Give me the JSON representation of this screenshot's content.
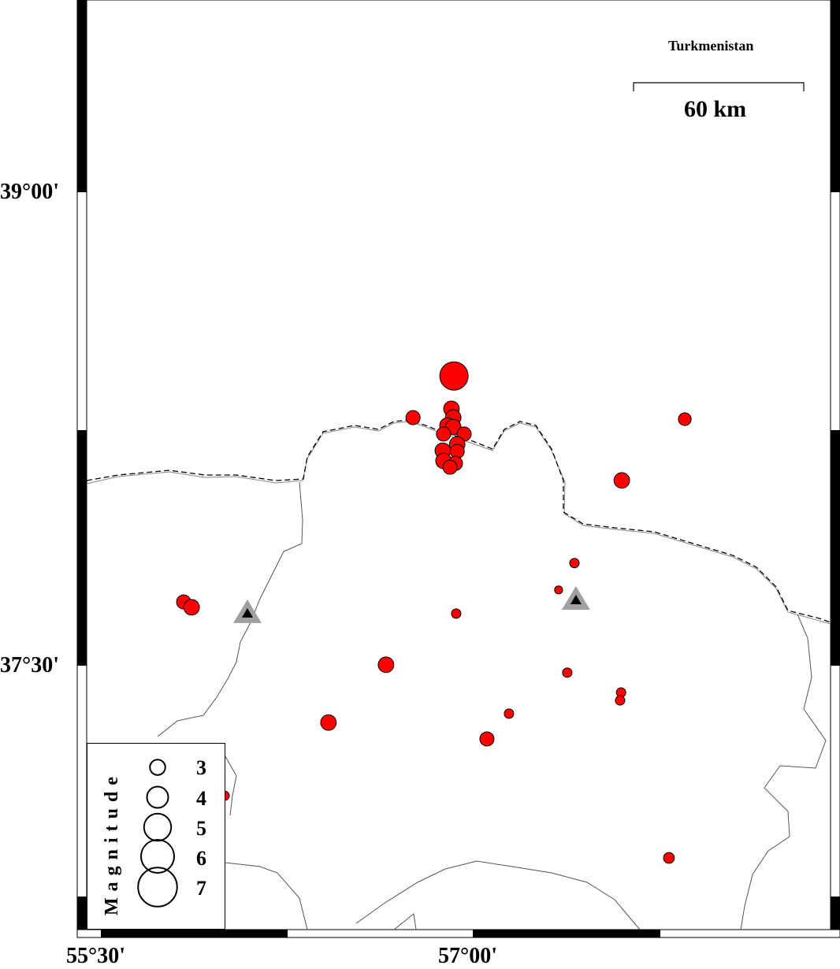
{
  "map": {
    "extent": {
      "lon": [
        55.44,
        58.44
      ],
      "lat": [
        36.66,
        39.61
      ]
    },
    "country_label": "Turkmenistan",
    "scale_bar": {
      "label": "60 km"
    },
    "lat_ticks": [
      {
        "value": 39.0,
        "label": "39°00'"
      },
      {
        "value": 37.5,
        "label": "37°30'"
      }
    ],
    "lon_ticks": [
      {
        "value": 55.5,
        "label": "55°30'"
      },
      {
        "value": 57.0,
        "label": "57°00'"
      }
    ],
    "colors": {
      "event_fill": "#ff0000",
      "event_stroke": "#000000",
      "station_outer": "#a0a0a0",
      "station_inner": "#000000",
      "border": "#000000",
      "province": "#666666"
    },
    "events": [
      {
        "lon": 56.924,
        "lat": 38.418,
        "mag": 7.0
      },
      {
        "lon": 56.914,
        "lat": 38.314,
        "mag": 4.3
      },
      {
        "lon": 56.759,
        "lat": 38.286,
        "mag": 4.0
      },
      {
        "lon": 56.921,
        "lat": 38.286,
        "mag": 4.3
      },
      {
        "lon": 56.898,
        "lat": 38.261,
        "mag": 4.3
      },
      {
        "lon": 56.921,
        "lat": 38.256,
        "mag": 4.3
      },
      {
        "lon": 56.965,
        "lat": 38.234,
        "mag": 4.0
      },
      {
        "lon": 56.882,
        "lat": 38.234,
        "mag": 4.0
      },
      {
        "lon": 56.937,
        "lat": 38.201,
        "mag": 4.3
      },
      {
        "lon": 56.879,
        "lat": 38.181,
        "mag": 4.3
      },
      {
        "lon": 56.937,
        "lat": 38.179,
        "mag": 4.0
      },
      {
        "lon": 56.882,
        "lat": 38.149,
        "mag": 4.3
      },
      {
        "lon": 56.93,
        "lat": 38.141,
        "mag": 4.0
      },
      {
        "lon": 56.908,
        "lat": 38.129,
        "mag": 4.0
      },
      {
        "lon": 57.855,
        "lat": 38.281,
        "mag": 3.7
      },
      {
        "lon": 57.601,
        "lat": 38.087,
        "mag": 4.3
      },
      {
        "lon": 57.41,
        "lat": 37.825,
        "mag": 3.0
      },
      {
        "lon": 57.346,
        "lat": 37.74,
        "mag": 2.7
      },
      {
        "lon": 55.834,
        "lat": 37.702,
        "mag": 4.0
      },
      {
        "lon": 55.866,
        "lat": 37.685,
        "mag": 4.3
      },
      {
        "lon": 56.933,
        "lat": 37.665,
        "mag": 3.0
      },
      {
        "lon": 56.65,
        "lat": 37.503,
        "mag": 4.3
      },
      {
        "lon": 57.381,
        "lat": 37.478,
        "mag": 3.0
      },
      {
        "lon": 57.598,
        "lat": 37.415,
        "mag": 3.0
      },
      {
        "lon": 57.594,
        "lat": 37.39,
        "mag": 3.0
      },
      {
        "lon": 56.418,
        "lat": 37.32,
        "mag": 4.3
      },
      {
        "lon": 57.146,
        "lat": 37.348,
        "mag": 3.0
      },
      {
        "lon": 57.057,
        "lat": 37.268,
        "mag": 4.0
      },
      {
        "lon": 57.791,
        "lat": 36.891,
        "mag": 3.3
      },
      {
        "lon": 55.999,
        "lat": 37.088,
        "mag": 3.0
      }
    ],
    "stations": [
      {
        "lon": 56.091,
        "lat": 37.665
      },
      {
        "lon": 57.416,
        "lat": 37.707
      }
    ]
  },
  "legend": {
    "title": "Magnitude",
    "entries": [
      {
        "mag": 3,
        "label": "3"
      },
      {
        "mag": 4,
        "label": "4"
      },
      {
        "mag": 5,
        "label": "5"
      },
      {
        "mag": 6,
        "label": "6"
      },
      {
        "mag": 7,
        "label": "7"
      }
    ]
  }
}
